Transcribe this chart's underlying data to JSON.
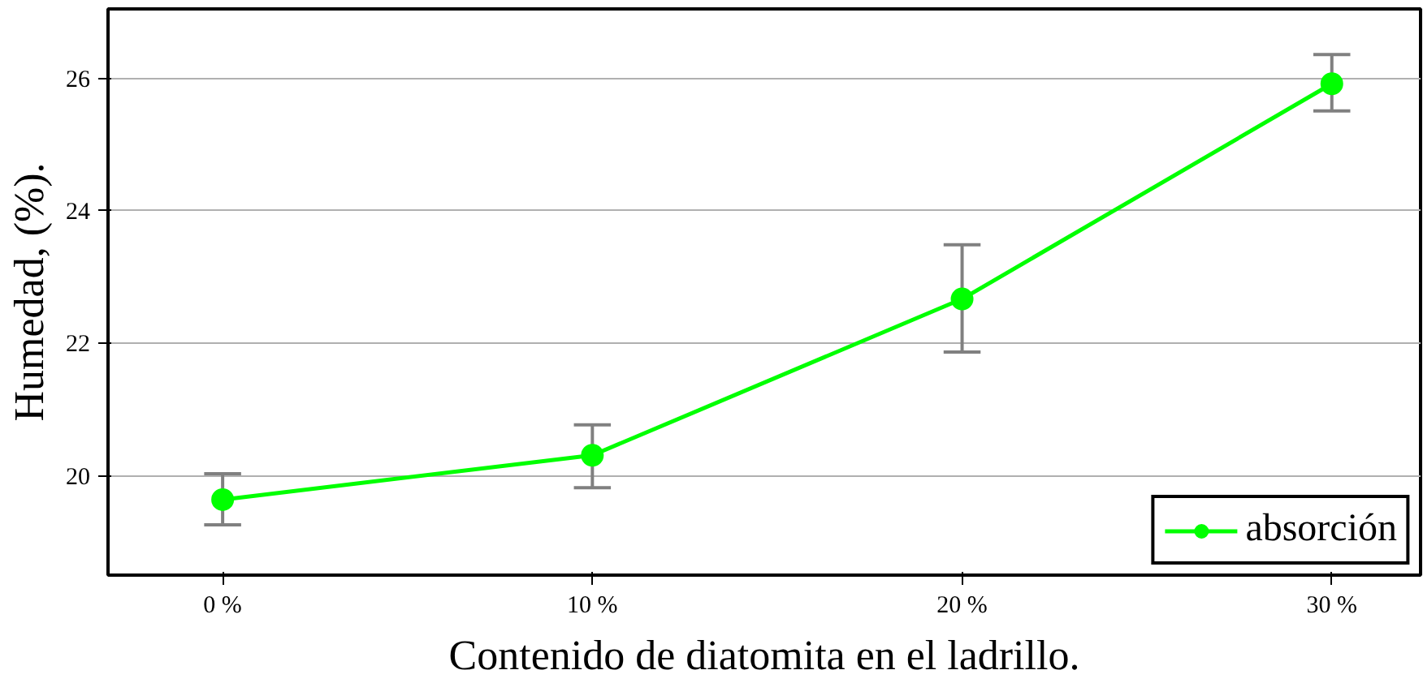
{
  "chart_data": {
    "type": "line",
    "xlabel": "Contenido de diatomita en el ladrillo.",
    "ylabel": "Humedad, (%).",
    "x": [
      0,
      10,
      20,
      30
    ],
    "series": [
      {
        "name": "absorción",
        "color": "#00ff00",
        "values": [
          19.64,
          20.31,
          22.67,
          25.92
        ],
        "errors": [
          [
            19.26,
            20.03
          ],
          [
            19.82,
            20.77
          ],
          [
            21.87,
            23.49
          ],
          [
            25.51,
            26.36
          ]
        ]
      }
    ],
    "xlim": [
      -3.1,
      32.4
    ],
    "ylim": [
      18.5,
      27.05
    ],
    "xticks": [
      {
        "value": 0,
        "label": "0 %"
      },
      {
        "value": 10,
        "label": "10 %"
      },
      {
        "value": 20,
        "label": "20 %"
      },
      {
        "value": 30,
        "label": "30 %"
      }
    ],
    "yticks": [
      20,
      22,
      24,
      26
    ],
    "grid": "y",
    "legend": "bottom right",
    "marker": "circle",
    "line_style": "solid"
  }
}
